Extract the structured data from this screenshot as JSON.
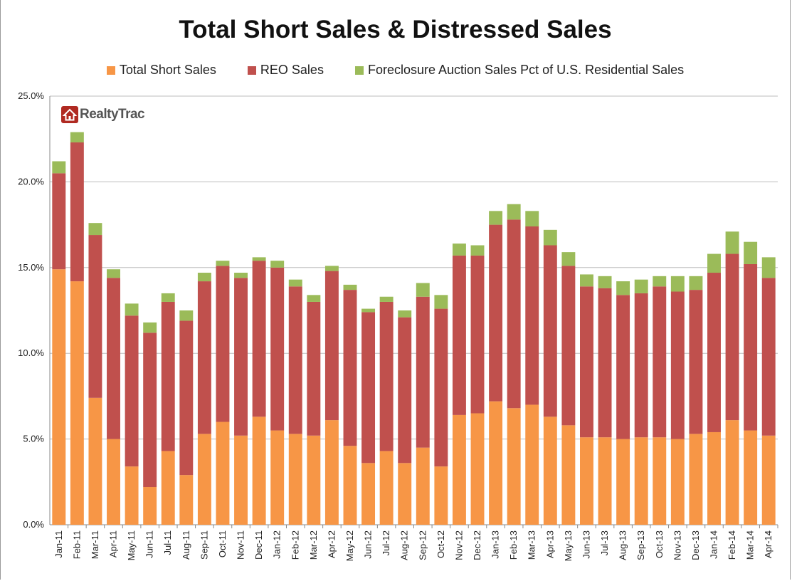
{
  "chart_data": {
    "type": "bar",
    "stacked": true,
    "title": "Total Short Sales & Distressed Sales",
    "categories": [
      "Jan-11",
      "Feb-11",
      "Mar-11",
      "Apr-11",
      "May-11",
      "Jun-11",
      "Jul-11",
      "Aug-11",
      "Sep-11",
      "Oct-11",
      "Nov-11",
      "Dec-11",
      "Jan-12",
      "Feb-12",
      "Mar-12",
      "Apr-12",
      "May-12",
      "Jun-12",
      "Jul-12",
      "Aug-12",
      "Sep-12",
      "Oct-12",
      "Nov-12",
      "Dec-12",
      "Jan-13",
      "Feb-13",
      "Mar-13",
      "Apr-13",
      "May-13",
      "Jun-13",
      "Jul-13",
      "Aug-13",
      "Sep-13",
      "Oct-13",
      "Nov-13",
      "Dec-13",
      "Jan-14",
      "Feb-14",
      "Mar-14",
      "Apr-14"
    ],
    "series": [
      {
        "name": "Total Short Sales",
        "color": "#f79646",
        "values": [
          14.9,
          14.2,
          7.4,
          5.0,
          3.4,
          2.2,
          4.3,
          2.9,
          5.3,
          6.0,
          5.2,
          6.3,
          5.5,
          5.3,
          5.2,
          6.1,
          4.6,
          3.6,
          4.3,
          3.6,
          4.5,
          3.4,
          6.4,
          6.5,
          7.2,
          6.8,
          7.0,
          6.3,
          5.8,
          5.1,
          5.1,
          5.0,
          5.1,
          5.1,
          5.0,
          5.3,
          5.4,
          6.1,
          5.5,
          5.2
        ]
      },
      {
        "name": "REO Sales",
        "color": "#c0504d",
        "values": [
          5.6,
          8.1,
          9.5,
          9.4,
          8.8,
          9.0,
          8.7,
          9.0,
          8.9,
          9.1,
          9.2,
          9.1,
          9.5,
          8.6,
          7.8,
          8.7,
          9.1,
          8.8,
          8.7,
          8.5,
          8.8,
          9.2,
          9.3,
          9.2,
          10.3,
          11.0,
          10.4,
          10.0,
          9.3,
          8.8,
          8.7,
          8.4,
          8.4,
          8.8,
          8.6,
          8.4,
          9.3,
          9.7,
          9.7,
          9.2
        ]
      },
      {
        "name": "Foreclosure Auction Sales Pct of U.S. Residential Sales",
        "color": "#9bbb59",
        "values": [
          0.7,
          0.6,
          0.7,
          0.5,
          0.7,
          0.6,
          0.5,
          0.6,
          0.5,
          0.3,
          0.3,
          0.2,
          0.4,
          0.4,
          0.4,
          0.3,
          0.3,
          0.2,
          0.3,
          0.4,
          0.8,
          0.8,
          0.7,
          0.6,
          0.8,
          0.9,
          0.9,
          0.9,
          0.8,
          0.7,
          0.7,
          0.8,
          0.8,
          0.6,
          0.9,
          0.8,
          1.1,
          1.3,
          1.3,
          1.2
        ]
      }
    ],
    "yticks": [
      "0.0%",
      "5.0%",
      "10.0%",
      "15.0%",
      "20.0%",
      "25.0%"
    ],
    "ylim": [
      0,
      25
    ],
    "ylabel": "",
    "xlabel": "",
    "grid": true,
    "legend_position": "top"
  },
  "logo": {
    "text": "RealtyTrac"
  }
}
